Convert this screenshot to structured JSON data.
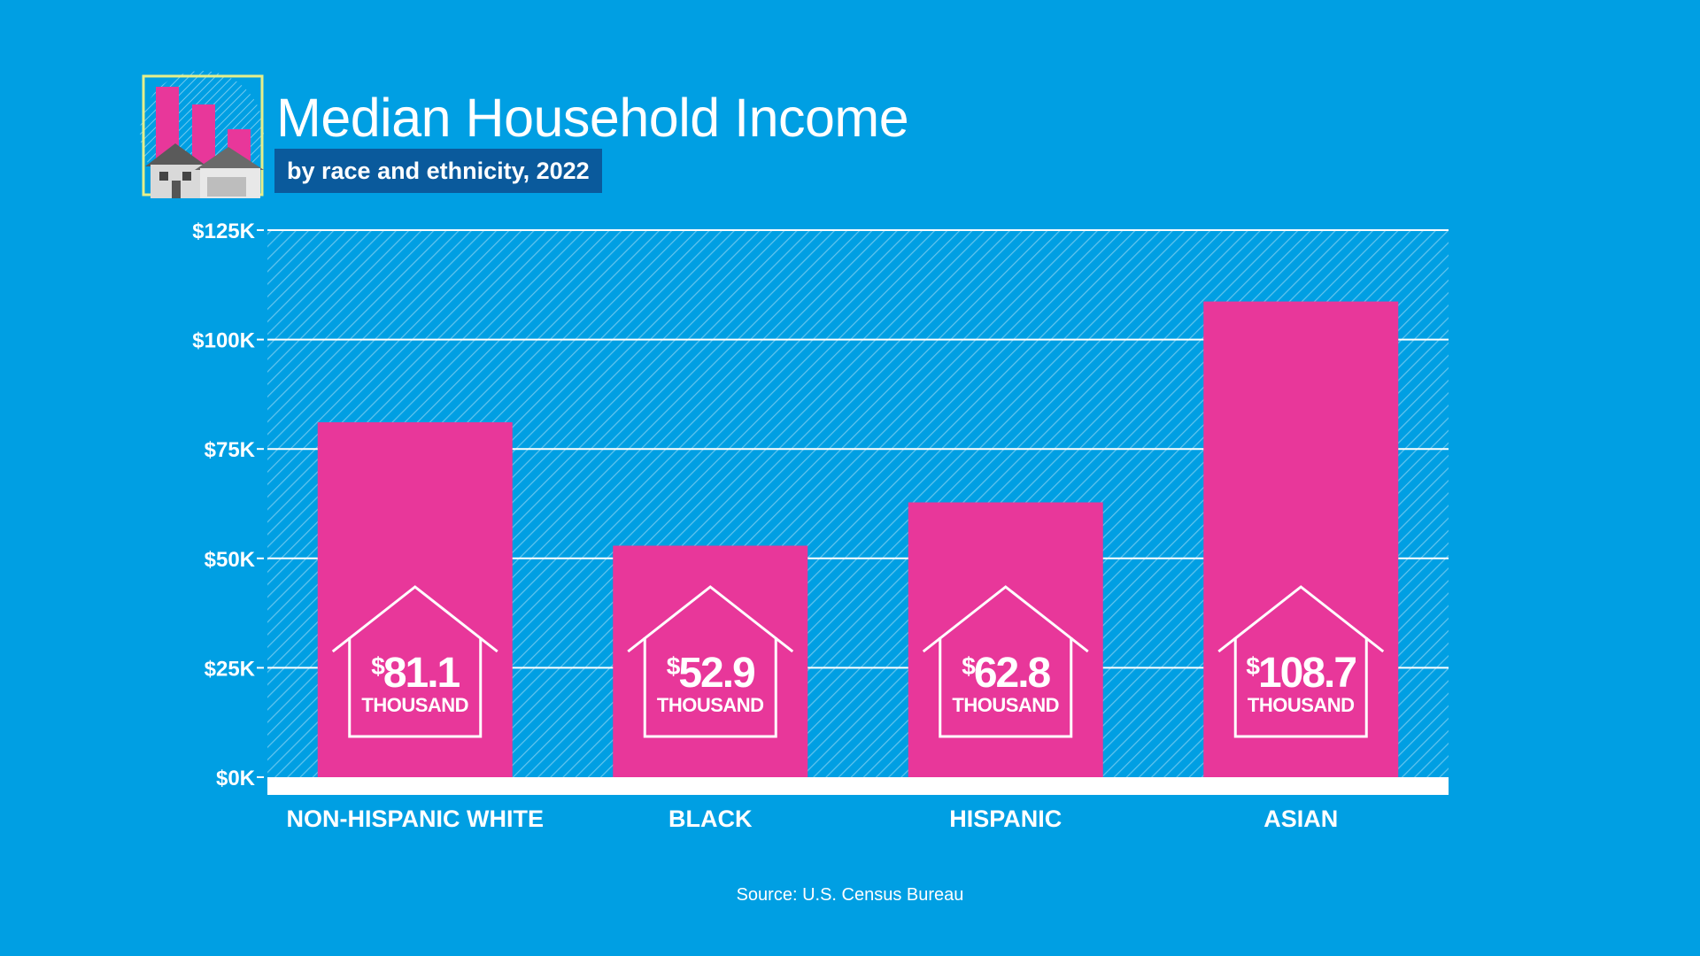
{
  "header": {
    "title": "Median Household Income",
    "subtitle": "by race and ethnicity, 2022"
  },
  "footer": {
    "source": "Source: U.S. Census Bureau"
  },
  "logo": {
    "icon": "house-with-bar-chart-icon"
  },
  "colors": {
    "background": "#009fe3",
    "bar": "#e8379a",
    "subtitle_box": "#0a5a9c",
    "logo_frame": "#e6ef8a",
    "text": "#ffffff"
  },
  "chart_data": {
    "type": "bar",
    "title": "Median Household Income",
    "subtitle": "by race and ethnicity, 2022",
    "categories": [
      "NON-HISPANIC  WHITE",
      "BLACK",
      "HISPANIC",
      "ASIAN"
    ],
    "values": [
      81.1,
      52.9,
      62.8,
      108.7
    ],
    "value_prefix": "$",
    "value_unit_label": "THOUSAND",
    "ylim": [
      0,
      125
    ],
    "yticks": [
      0,
      25,
      50,
      75,
      100,
      125
    ],
    "ytick_labels": [
      "$0K",
      "$25K",
      "$50K",
      "$75K",
      "$100K",
      "$125K"
    ],
    "grid": true,
    "xlabel": "",
    "ylabel": ""
  }
}
